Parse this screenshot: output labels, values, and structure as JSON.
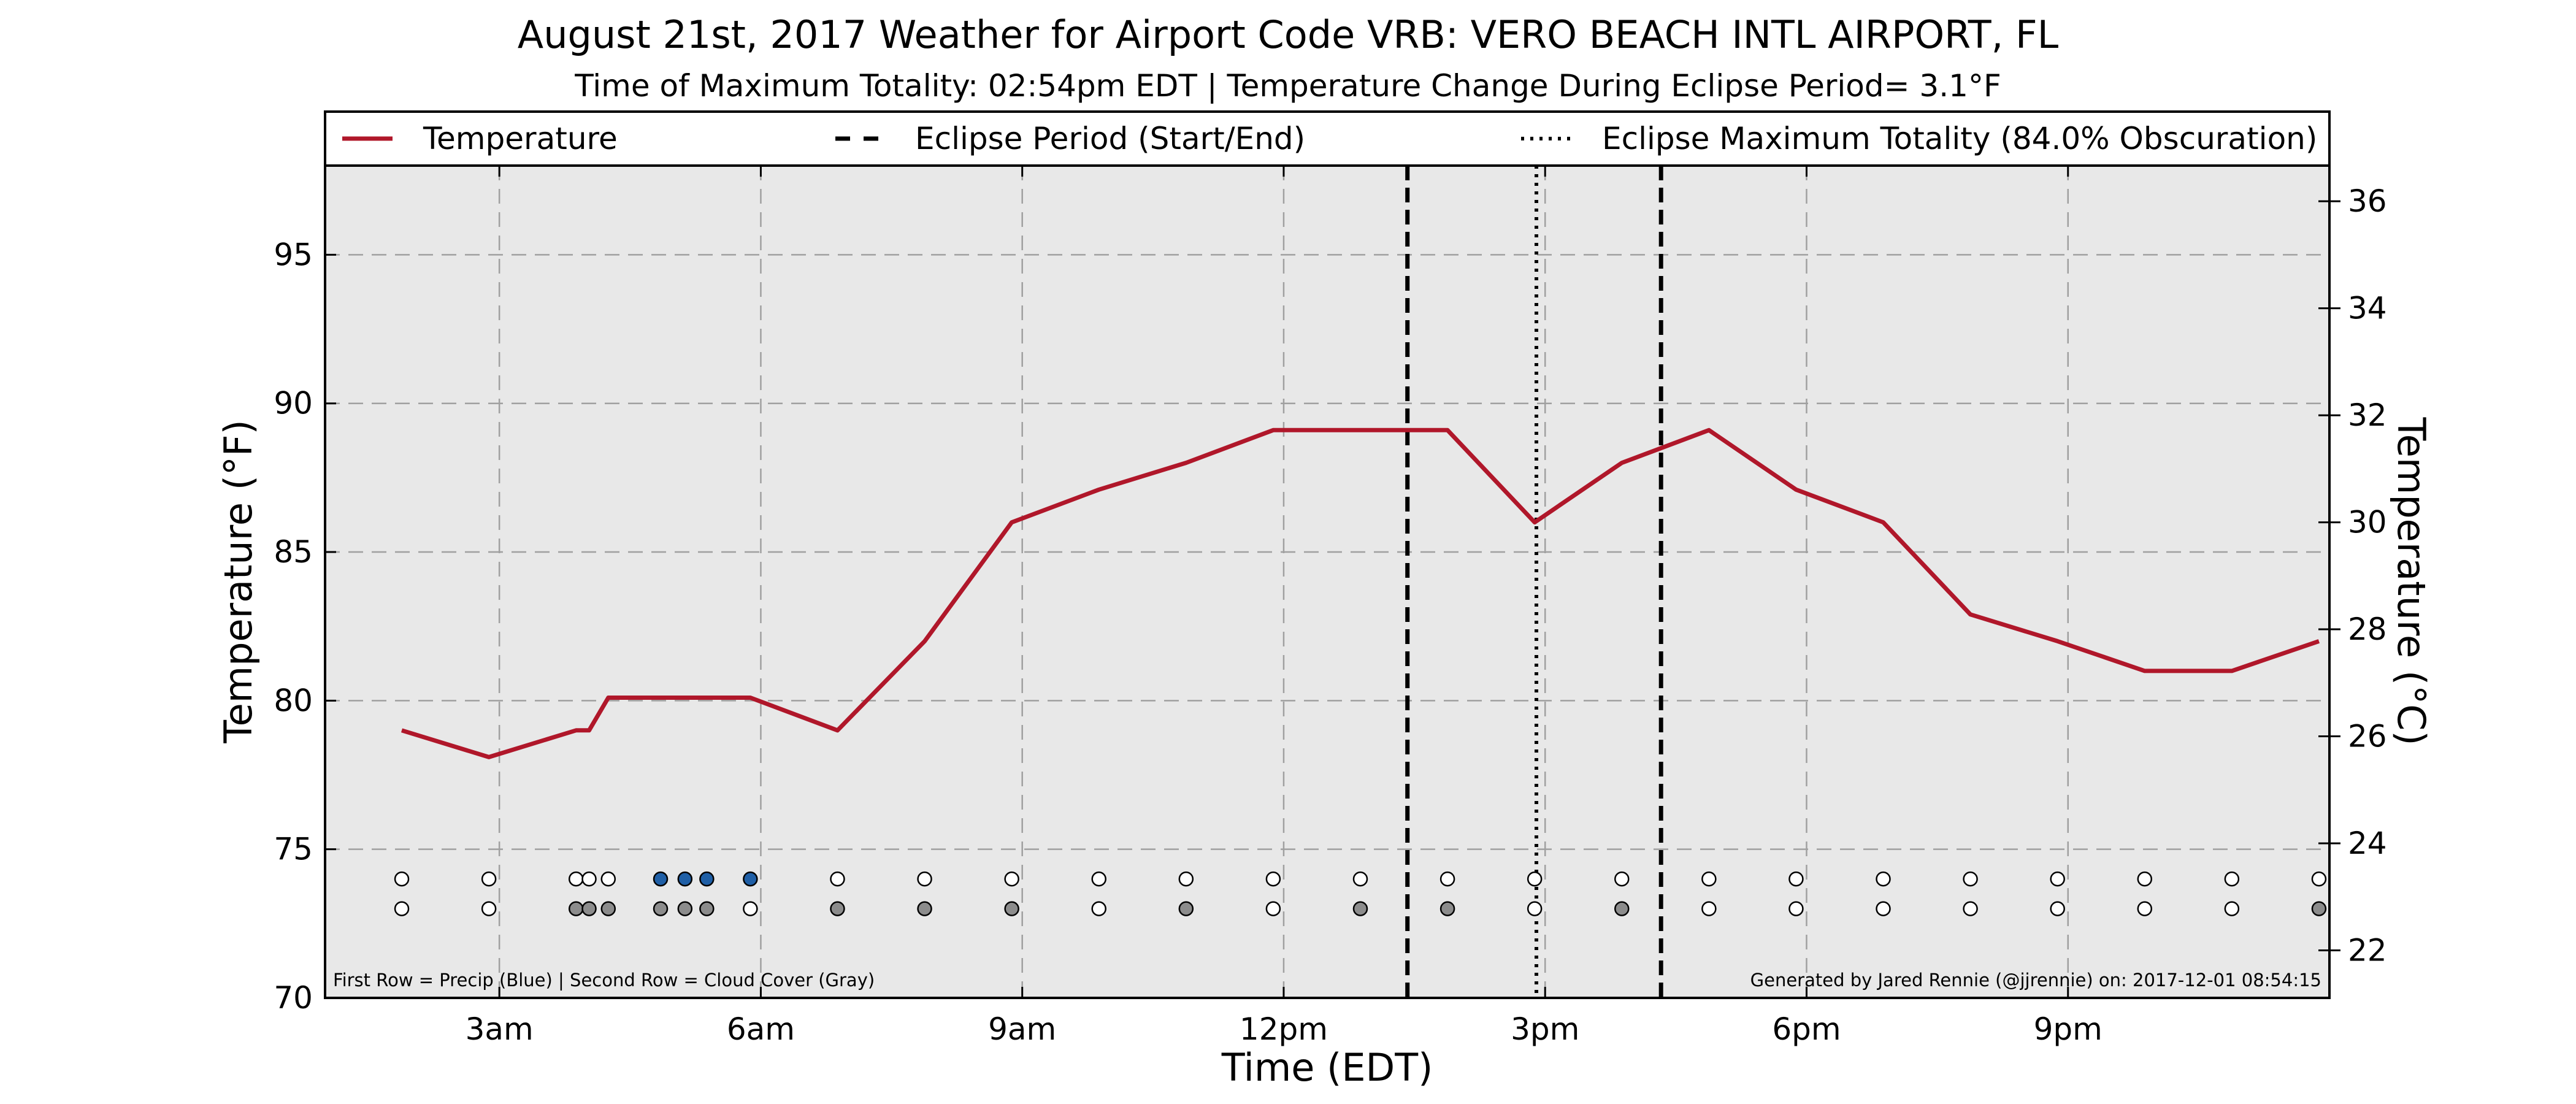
{
  "chart_data": {
    "type": "line",
    "title": "August 21st, 2017 Weather for Airport Code VRB: VERO BEACH INTL AIRPORT, FL",
    "subtitle": "Time of Maximum Totality: 02:54pm EDT | Temperature Change During Eclipse Period= 3.1°F",
    "xlabel": "Time (EDT)",
    "ylabel": "Temperature (°F)",
    "ylabel_right": "Temperature (°C)",
    "x_unit": "hours after midnight EDT",
    "xlim": [
      1.0,
      24.0
    ],
    "ylim": [
      70,
      98
    ],
    "ylim_right_celsius": [
      21.11,
      36.67
    ],
    "x_ticks": [
      {
        "value": 3,
        "label": "3am"
      },
      {
        "value": 6,
        "label": "6am"
      },
      {
        "value": 9,
        "label": "9am"
      },
      {
        "value": 12,
        "label": "12pm"
      },
      {
        "value": 15,
        "label": "3pm"
      },
      {
        "value": 18,
        "label": "6pm"
      },
      {
        "value": 21,
        "label": "9pm"
      }
    ],
    "y_ticks": [
      70,
      75,
      80,
      85,
      90,
      95
    ],
    "y_ticks_right": [
      22,
      24,
      26,
      28,
      30,
      32,
      34,
      36
    ],
    "grid": true,
    "legend_placement": "top",
    "legend": [
      {
        "label": "Temperature",
        "style": "solid",
        "color": "#b0172a"
      },
      {
        "label": "Eclipse Period (Start/End)",
        "style": "dashed",
        "color": "#000000"
      },
      {
        "label": "Eclipse Maximum Totality (84.0% Obscuration)",
        "style": "dotted",
        "color": "#000000"
      }
    ],
    "series": [
      {
        "name": "Temperature",
        "color": "#b0172a",
        "x": [
          1.88,
          2.88,
          3.88,
          4.03,
          4.25,
          4.55,
          4.85,
          5.13,
          5.38,
          5.88,
          6.88,
          7.88,
          8.88,
          9.88,
          10.88,
          11.88,
          12.88,
          13.88,
          14.88,
          15.88,
          16.88,
          17.88,
          18.88,
          19.88,
          20.88,
          21.88,
          22.88,
          23.88
        ],
        "y": [
          79,
          78.1,
          79,
          79,
          80.1,
          80.1,
          80.1,
          80.1,
          80.1,
          80.1,
          79,
          82,
          86,
          87.1,
          88,
          89.1,
          89.1,
          89.1,
          86,
          88,
          89.1,
          87.1,
          86,
          82.9,
          82,
          81,
          81,
          82
        ]
      }
    ],
    "eclipse_start": 13.42,
    "eclipse_end": 16.33,
    "eclipse_max": 14.9,
    "dot_rows": {
      "precip_y": 74,
      "cloud_y": 73,
      "precip": [
        {
          "x": 1.88,
          "fill": "white"
        },
        {
          "x": 2.88,
          "fill": "white"
        },
        {
          "x": 3.88,
          "fill": "white"
        },
        {
          "x": 4.03,
          "fill": "white"
        },
        {
          "x": 4.25,
          "fill": "white"
        },
        {
          "x": 4.85,
          "fill": "blue"
        },
        {
          "x": 5.13,
          "fill": "blue"
        },
        {
          "x": 5.38,
          "fill": "blue"
        },
        {
          "x": 5.88,
          "fill": "blue"
        },
        {
          "x": 6.88,
          "fill": "white"
        },
        {
          "x": 7.88,
          "fill": "white"
        },
        {
          "x": 8.88,
          "fill": "white"
        },
        {
          "x": 9.88,
          "fill": "white"
        },
        {
          "x": 10.88,
          "fill": "white"
        },
        {
          "x": 11.88,
          "fill": "white"
        },
        {
          "x": 12.88,
          "fill": "white"
        },
        {
          "x": 13.88,
          "fill": "white"
        },
        {
          "x": 14.88,
          "fill": "white"
        },
        {
          "x": 15.88,
          "fill": "white"
        },
        {
          "x": 16.88,
          "fill": "white"
        },
        {
          "x": 17.88,
          "fill": "white"
        },
        {
          "x": 18.88,
          "fill": "white"
        },
        {
          "x": 19.88,
          "fill": "white"
        },
        {
          "x": 20.88,
          "fill": "white"
        },
        {
          "x": 21.88,
          "fill": "white"
        },
        {
          "x": 22.88,
          "fill": "white"
        },
        {
          "x": 23.88,
          "fill": "white"
        }
      ],
      "cloud": [
        {
          "x": 1.88,
          "fill": "white"
        },
        {
          "x": 2.88,
          "fill": "white"
        },
        {
          "x": 3.88,
          "fill": "gray"
        },
        {
          "x": 4.03,
          "fill": "gray"
        },
        {
          "x": 4.25,
          "fill": "gray"
        },
        {
          "x": 4.85,
          "fill": "gray"
        },
        {
          "x": 5.13,
          "fill": "gray"
        },
        {
          "x": 5.38,
          "fill": "gray"
        },
        {
          "x": 5.88,
          "fill": "white"
        },
        {
          "x": 6.88,
          "fill": "gray"
        },
        {
          "x": 7.88,
          "fill": "gray"
        },
        {
          "x": 8.88,
          "fill": "gray"
        },
        {
          "x": 9.88,
          "fill": "white"
        },
        {
          "x": 10.88,
          "fill": "gray"
        },
        {
          "x": 11.88,
          "fill": "white"
        },
        {
          "x": 12.88,
          "fill": "gray"
        },
        {
          "x": 13.88,
          "fill": "gray"
        },
        {
          "x": 14.88,
          "fill": "white"
        },
        {
          "x": 15.88,
          "fill": "gray"
        },
        {
          "x": 16.88,
          "fill": "white"
        },
        {
          "x": 17.88,
          "fill": "white"
        },
        {
          "x": 18.88,
          "fill": "white"
        },
        {
          "x": 19.88,
          "fill": "white"
        },
        {
          "x": 20.88,
          "fill": "white"
        },
        {
          "x": 21.88,
          "fill": "white"
        },
        {
          "x": 22.88,
          "fill": "white"
        },
        {
          "x": 23.88,
          "fill": "gray"
        }
      ]
    },
    "colors": {
      "plot_background": "#e8e8e8",
      "precip_blue": "#1f5fa6",
      "cloud_gray": "#8c8c8c",
      "dot_white": "#ffffff"
    },
    "annotations": {
      "footer_left": "First Row = Precip (Blue) | Second Row = Cloud Cover (Gray)",
      "footer_right": "Generated by Jared Rennie (@jjrennie) on: 2017-12-01 08:54:15"
    }
  }
}
